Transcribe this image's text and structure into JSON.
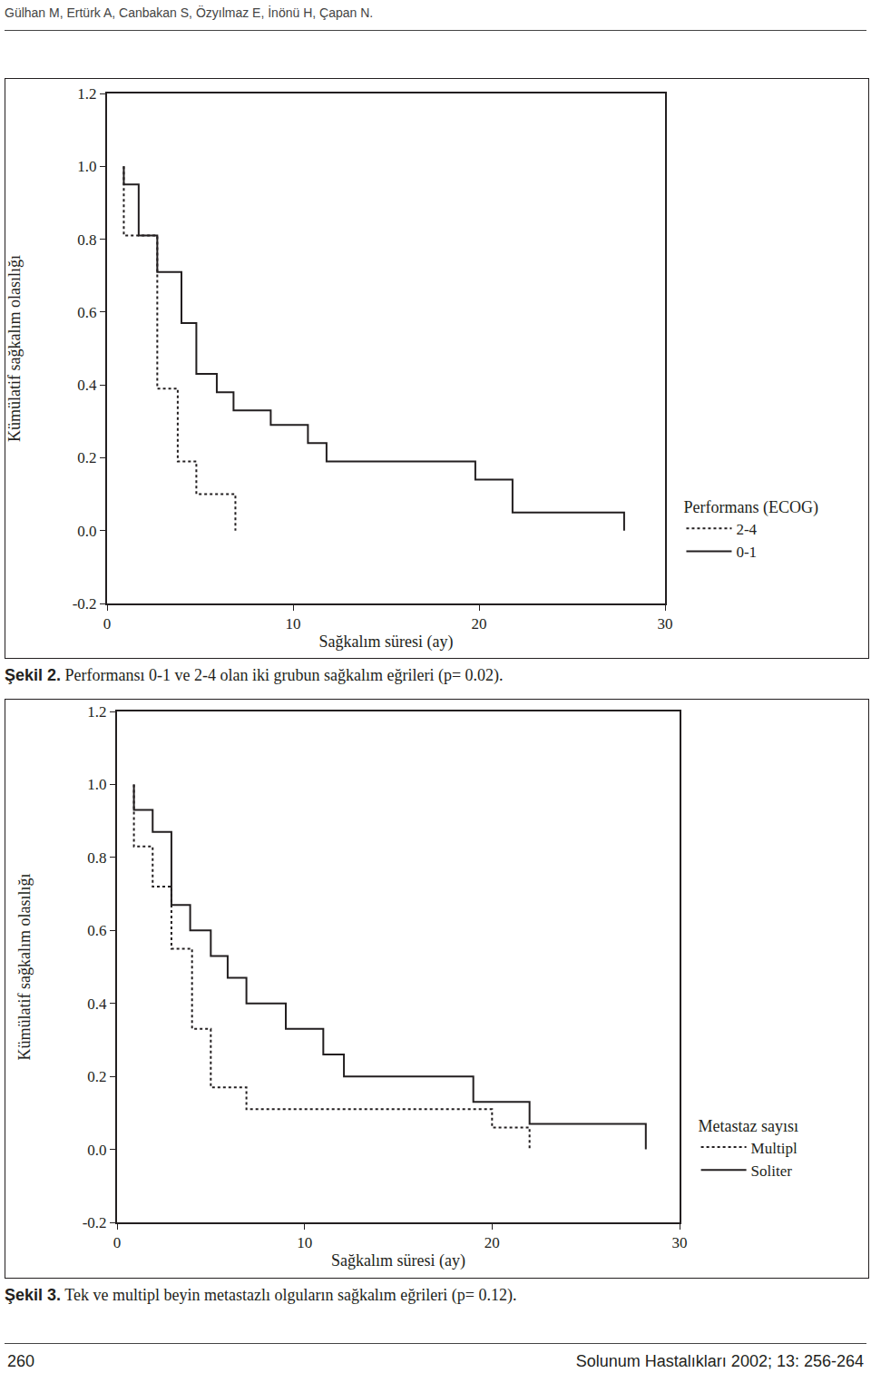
{
  "header": "Gülhan M, Ertürk A, Canbakan S, Özyılmaz E, İnönü H, Çapan N.",
  "chart_data": [
    {
      "type": "step",
      "x_label": "Sağkalım süresi (ay)",
      "y_label": "Kümülatif sağkalım olasılığı",
      "legend_title": "Performans (ECOG)",
      "legend": "right",
      "grid": false,
      "xlim": [
        0,
        30
      ],
      "xticks": [
        0,
        10,
        20,
        30
      ],
      "ylim": [
        -0.2,
        1.2
      ],
      "yticks": [
        -0.2,
        {
          "value": 0,
          "label": "0.0"
        },
        0.2,
        0.4,
        0.6,
        0.8,
        {
          "value": 1,
          "label": "1.0"
        },
        1.2
      ],
      "series": [
        {
          "name": "2-4",
          "color": "#231f20",
          "line_style": "dotted",
          "x": [
            0.9,
            0.9,
            2.7,
            3.8,
            4.8,
            6.9
          ],
          "values": [
            1.0,
            0.81,
            0.39,
            0.19,
            0.1,
            0.0
          ]
        },
        {
          "name": "0-1",
          "color": "#231f20",
          "line_style": "solid",
          "x": [
            0.9,
            0.9,
            1.7,
            2.7,
            4.0,
            4.8,
            5.9,
            6.8,
            8.8,
            10.8,
            11.8,
            19.8,
            21.8,
            27.8
          ],
          "values": [
            1.0,
            0.95,
            0.81,
            0.71,
            0.57,
            0.43,
            0.38,
            0.33,
            0.29,
            0.24,
            0.19,
            0.14,
            0.05,
            0.0
          ]
        }
      ]
    },
    {
      "type": "step",
      "x_label": "Sağkalım süresi (ay)",
      "y_label": "Kümülatif sağkalım olasılığı",
      "legend_title": "Metastaz sayısı",
      "legend": "right",
      "grid": false,
      "xlim": [
        0,
        30
      ],
      "xticks": [
        0,
        10,
        20,
        30
      ],
      "ylim": [
        -0.2,
        1.2
      ],
      "yticks": [
        -0.2,
        {
          "value": 0,
          "label": "0.0"
        },
        0.2,
        0.4,
        0.6,
        0.8,
        {
          "value": 1,
          "label": "1.0"
        },
        1.2
      ],
      "series": [
        {
          "name": "Multipl",
          "color": "#231f20",
          "line_style": "dotted",
          "x": [
            0.9,
            0.9,
            1.9,
            2.9,
            4.0,
            5.0,
            6.9,
            20.0,
            22.0
          ],
          "values": [
            1.0,
            0.83,
            0.72,
            0.55,
            0.33,
            0.17,
            0.11,
            0.06,
            0.0
          ]
        },
        {
          "name": "Soliter",
          "color": "#231f20",
          "line_style": "solid",
          "x": [
            0.9,
            0.9,
            1.9,
            2.9,
            3.9,
            5.0,
            5.9,
            6.9,
            9.0,
            11.0,
            12.1,
            19.0,
            22.0,
            28.2
          ],
          "values": [
            1.0,
            0.93,
            0.87,
            0.67,
            0.6,
            0.53,
            0.47,
            0.4,
            0.33,
            0.26,
            0.2,
            0.13,
            0.07,
            0.0
          ]
        }
      ]
    }
  ],
  "captions": [
    {
      "label": "Şekil 2.",
      "text": "Performansı 0-1 ve 2-4 olan iki grubun sağkalım eğrileri (p= 0.02)."
    },
    {
      "label": "Şekil 3.",
      "text": "Tek ve multipl beyin metastazlı olguların sağkalım eğrileri (p= 0.12)."
    }
  ],
  "footer": {
    "page": "260",
    "journal": "Solunum Hastalıkları 2002; 13: 256-264"
  }
}
